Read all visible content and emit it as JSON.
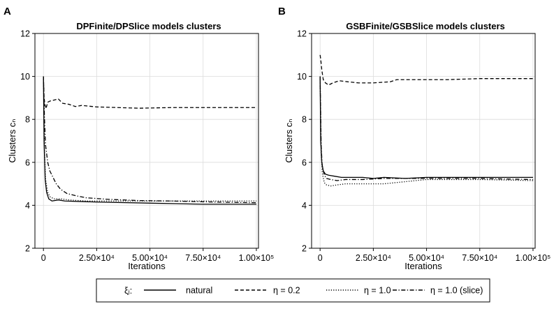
{
  "chart_data": [
    {
      "panel_label": "A",
      "type": "line",
      "title": "DPFinite/DPSlice models clusters",
      "xlabel": "Iterations",
      "ylabel": "Clusters cₙ",
      "xlim": [
        -4000,
        101000
      ],
      "ylim": [
        2,
        12
      ],
      "xticks": [
        0,
        25000,
        50000,
        75000,
        100000
      ],
      "xtick_labels": [
        "0",
        "2.50×10⁴",
        "5.00×10⁴",
        "7.50×10⁴",
        "1.00×10⁵"
      ],
      "yticks": [
        2,
        4,
        6,
        8,
        10,
        12
      ],
      "ytick_labels": [
        "2",
        "4",
        "6",
        "8",
        "10",
        "12"
      ],
      "grid": true,
      "series": [
        {
          "name": "natural",
          "style": "solid",
          "x": [
            0,
            300,
            800,
            1500,
            2500,
            4000,
            7000,
            10000,
            25000,
            50000,
            75000,
            100000
          ],
          "y": [
            10,
            7.0,
            5.2,
            4.6,
            4.3,
            4.2,
            4.25,
            4.2,
            4.15,
            4.1,
            4.05,
            4.05
          ]
        },
        {
          "name": "η = 0.2",
          "style": "dashed",
          "x": [
            0,
            300,
            700,
            1200,
            2000,
            3000,
            5000,
            7000,
            9000,
            12000,
            15000,
            18000,
            25000,
            35000,
            45000,
            60000,
            75000,
            100000
          ],
          "y": [
            10,
            9.0,
            8.7,
            8.5,
            8.8,
            8.85,
            8.9,
            8.95,
            8.75,
            8.7,
            8.6,
            8.65,
            8.58,
            8.55,
            8.52,
            8.55,
            8.55,
            8.55
          ]
        },
        {
          "name": "η = 1.0",
          "style": "dotted",
          "x": [
            0,
            500,
            1000,
            2000,
            3000,
            5000,
            8000,
            12000,
            20000,
            30000,
            50000,
            75000,
            100000
          ],
          "y": [
            10,
            6.5,
            5.2,
            4.6,
            4.4,
            4.3,
            4.3,
            4.25,
            4.2,
            4.2,
            4.2,
            4.2,
            4.2
          ]
        },
        {
          "name": "η = 1.0 (slice)",
          "style": "dashdot",
          "x": [
            0,
            500,
            1000,
            2000,
            3000,
            4500,
            6000,
            8000,
            11000,
            15000,
            20000,
            30000,
            45000,
            60000,
            80000,
            100000
          ],
          "y": [
            10,
            8.0,
            6.8,
            6.0,
            5.6,
            5.3,
            5.0,
            4.75,
            4.55,
            4.45,
            4.35,
            4.28,
            4.22,
            4.2,
            4.15,
            4.12
          ]
        }
      ]
    },
    {
      "panel_label": "B",
      "type": "line",
      "title": "GSBFinite/GSBSlice models clusters",
      "xlabel": "Iterations",
      "ylabel": "Clusters cₙ",
      "xlim": [
        -4000,
        101000
      ],
      "ylim": [
        2,
        12
      ],
      "xticks": [
        0,
        25000,
        50000,
        75000,
        100000
      ],
      "xtick_labels": [
        "0",
        "2.50×10⁴",
        "5.00×10⁴",
        "7.50×10⁴",
        "1.00×10⁵"
      ],
      "yticks": [
        2,
        4,
        6,
        8,
        10,
        12
      ],
      "ytick_labels": [
        "2",
        "4",
        "6",
        "8",
        "10",
        "12"
      ],
      "grid": true,
      "series": [
        {
          "name": "natural",
          "style": "solid",
          "x": [
            0,
            300,
            800,
            1500,
            2500,
            4000,
            7000,
            10000,
            15000,
            20000,
            25000,
            30000,
            40000,
            50000,
            60000,
            75000,
            100000
          ],
          "y": [
            10,
            7.0,
            6.0,
            5.6,
            5.45,
            5.4,
            5.35,
            5.3,
            5.3,
            5.3,
            5.25,
            5.3,
            5.25,
            5.3,
            5.3,
            5.3,
            5.3
          ]
        },
        {
          "name": "η = 0.2",
          "style": "dashed",
          "x": [
            0,
            300,
            800,
            1500,
            2500,
            4000,
            6000,
            9000,
            13000,
            18000,
            25000,
            33000,
            36000,
            45000,
            60000,
            75000,
            100000
          ],
          "y": [
            11,
            10.8,
            10.3,
            9.85,
            9.7,
            9.6,
            9.7,
            9.8,
            9.75,
            9.7,
            9.7,
            9.75,
            9.85,
            9.85,
            9.85,
            9.9,
            9.9
          ]
        },
        {
          "name": "η = 1.0",
          "style": "dotted",
          "x": [
            0,
            500,
            1000,
            2000,
            3000,
            5000,
            8000,
            12000,
            20000,
            30000,
            40000,
            50000,
            60000,
            75000,
            100000
          ],
          "y": [
            10,
            6.5,
            5.5,
            5.05,
            4.95,
            4.9,
            4.95,
            5.0,
            5.0,
            5.0,
            5.1,
            5.2,
            5.2,
            5.2,
            5.15
          ]
        },
        {
          "name": "η = 1.0 (slice)",
          "style": "dashdot",
          "x": [
            0,
            500,
            1000,
            2000,
            3000,
            5000,
            8000,
            12000,
            20000,
            30000,
            40000,
            50000,
            75000,
            100000
          ],
          "y": [
            10,
            6.8,
            5.8,
            5.4,
            5.25,
            5.2,
            5.15,
            5.2,
            5.2,
            5.25,
            5.25,
            5.25,
            5.25,
            5.2
          ]
        }
      ]
    }
  ],
  "legend": {
    "title": "ξⱼ:",
    "entries": [
      {
        "label": "natural",
        "style": "solid"
      },
      {
        "label": "η = 0.2",
        "style": "dashed"
      },
      {
        "label": "η = 1.0",
        "style": "dotted"
      },
      {
        "label": "η = 1.0 (slice)",
        "style": "dashdot"
      }
    ]
  },
  "colors": {
    "line": "#000000",
    "grid": "#dcdcdc",
    "frame": "#000000"
  }
}
